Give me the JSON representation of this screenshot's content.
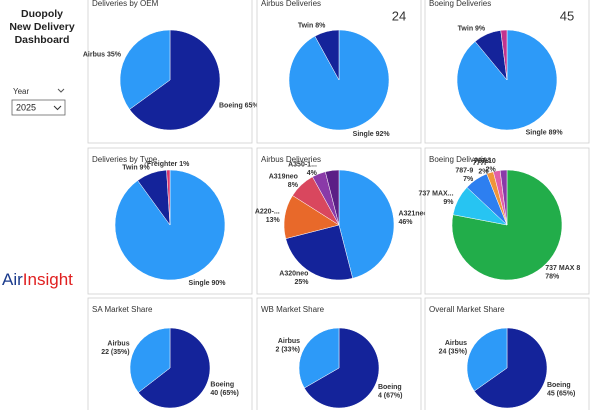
{
  "title_lines": [
    "Duopoly",
    "New Delivery",
    "Dashboard"
  ],
  "slicer": {
    "label": "Year",
    "value": "2025"
  },
  "brand": [
    "Air",
    "Insight"
  ],
  "chart_data": [
    {
      "type": "pie",
      "title": "Deliveries by OEM",
      "values": [
        65,
        35
      ],
      "value_labels": [
        "Boeing 65%",
        "Airbus 35%"
      ],
      "colors": [
        "#14239a",
        "#2d9af8"
      ]
    },
    {
      "type": "pie",
      "title": "Airbus Deliveries",
      "card": 24,
      "values": [
        92,
        8
      ],
      "value_labels": [
        "Single 92%",
        "Twin 8%"
      ],
      "colors": [
        "#2d9af8",
        "#14239a"
      ]
    },
    {
      "type": "pie",
      "title": "Boeing Deliveries",
      "card": 45,
      "values": [
        89,
        9,
        2
      ],
      "value_labels": [
        "Single 89%",
        "Twin 9%",
        null
      ],
      "colors": [
        "#2d9af8",
        "#14239a",
        "#c2348f"
      ]
    },
    {
      "type": "pie",
      "title": "Deliveries by Type",
      "values": [
        90,
        9,
        1
      ],
      "value_labels": [
        "Single 90%",
        "Twin 9%",
        "Freighter 1%"
      ],
      "colors": [
        "#2d9af8",
        "#14239a",
        "#d9376e"
      ]
    },
    {
      "type": "pie",
      "title": "Airbus Deliveries",
      "values": [
        46,
        25,
        13,
        8,
        4,
        4
      ],
      "value_labels": [
        "A321neo 46%",
        "A320neo 25%",
        "A220-... 13%",
        "A319neo 8%",
        "A350-1... 4%",
        null
      ],
      "colors": [
        "#2d9af8",
        "#14239a",
        "#e8692a",
        "#d9475e",
        "#8a3aa8",
        "#5b1f86"
      ]
    },
    {
      "type": "pie",
      "title": "Boeing Deliveries",
      "values": [
        78,
        9,
        7,
        2,
        2,
        2
      ],
      "value_labels": [
        "737 MAX 8 78%",
        "737 MAX... 9%",
        "787-9 7%",
        "777F 2%",
        "787-10 2%",
        null
      ],
      "colors": [
        "#22ad4a",
        "#27c4f2",
        "#2d7ff0",
        "#f0953a",
        "#e15fa8",
        "#8a3aa8"
      ]
    },
    {
      "type": "pie",
      "title": "SA Market Share",
      "values": [
        40,
        22
      ],
      "value_labels": [
        "Boeing 40 (65%)",
        "Airbus 22 (35%)"
      ],
      "colors": [
        "#14239a",
        "#2d9af8"
      ]
    },
    {
      "type": "pie",
      "title": "WB Market Share",
      "values": [
        4,
        2
      ],
      "value_labels": [
        "Boeing 4 (67%)",
        "Airbus 2 (33%)"
      ],
      "colors": [
        "#14239a",
        "#2d9af8"
      ]
    },
    {
      "type": "pie",
      "title": "Overall Market Share",
      "values": [
        45,
        24
      ],
      "value_labels": [
        "Boeing 45 (65%)",
        "Airbus 24 (35%)"
      ],
      "colors": [
        "#14239a",
        "#2d9af8"
      ]
    }
  ]
}
